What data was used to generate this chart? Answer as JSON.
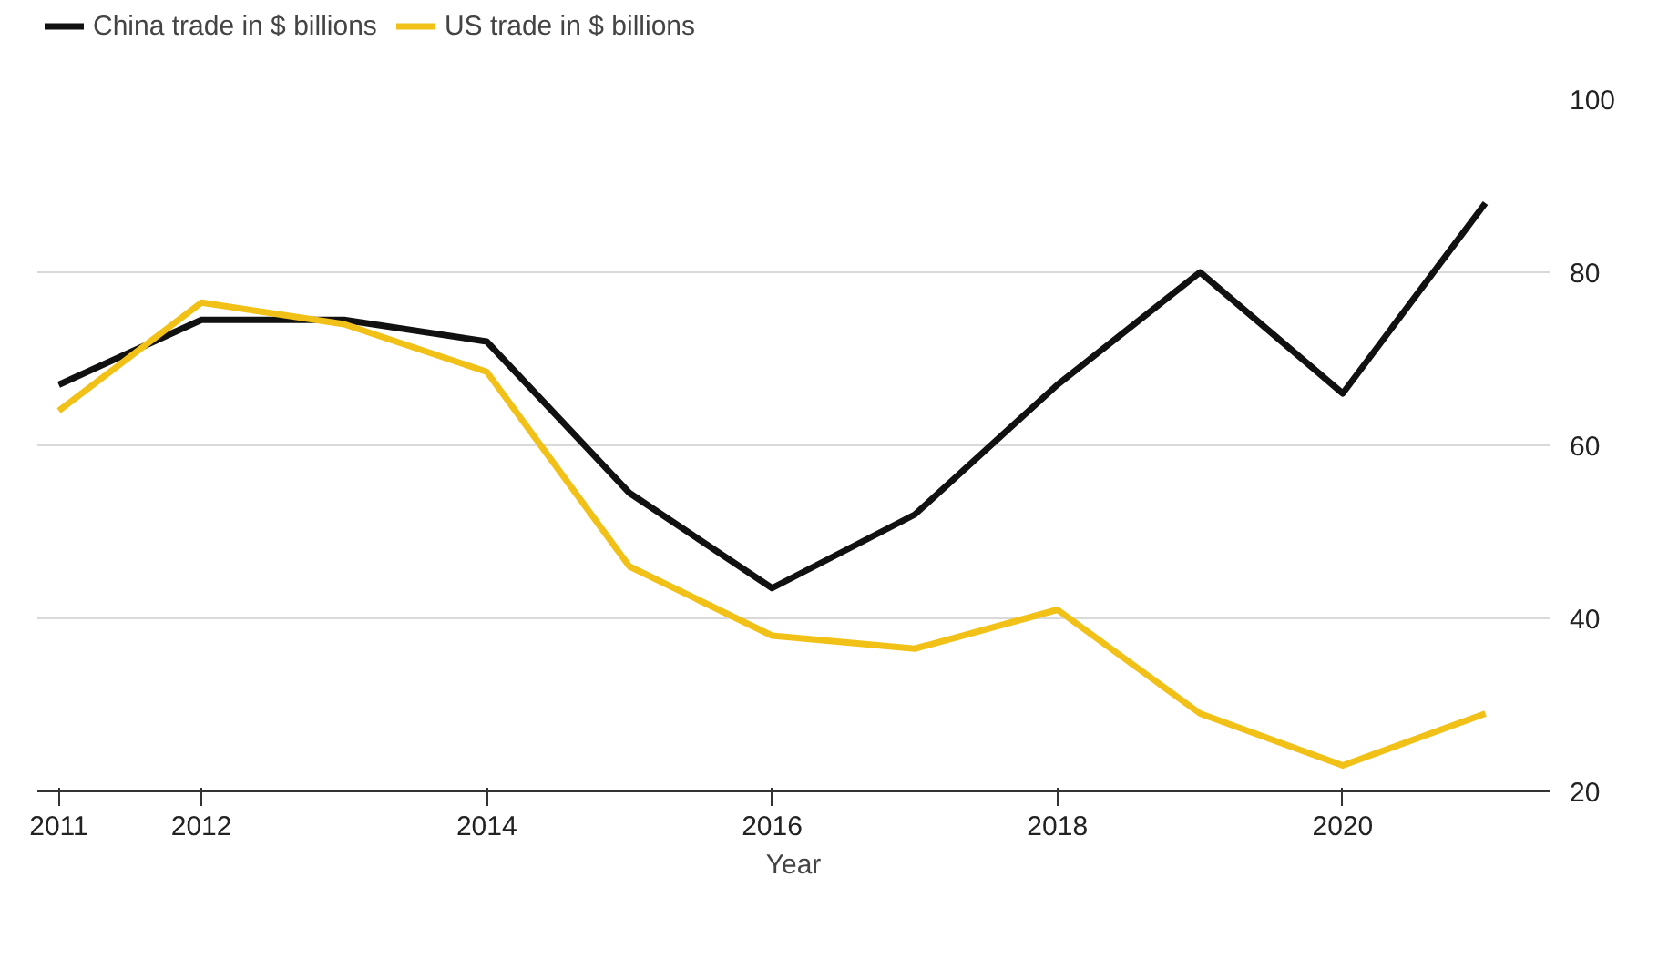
{
  "chart_data": {
    "type": "line",
    "xlabel": "Year",
    "x": [
      2011,
      2012,
      2013,
      2014,
      2015,
      2016,
      2017,
      2018,
      2019,
      2020,
      2021
    ],
    "series": [
      {
        "name": "China trade in $ billions",
        "color": "#111111",
        "values": [
          67,
          74.5,
          74.5,
          72,
          54.5,
          43.5,
          52,
          67,
          80,
          66,
          88
        ]
      },
      {
        "name": "US trade in $ billions",
        "color": "#f2c118",
        "values": [
          64,
          76.5,
          74,
          68.5,
          46,
          38,
          36.5,
          41,
          29,
          23,
          29
        ]
      }
    ],
    "xlim": [
      2010.85,
      2021.45
    ],
    "xticks": [
      2011,
      2012,
      2014,
      2016,
      2018,
      2020
    ],
    "ylim": [
      20,
      100
    ],
    "yticks": [
      20,
      40,
      60,
      80,
      100
    ],
    "grid": "y",
    "legend": "top left",
    "marker": "none",
    "line_style": "solid"
  }
}
